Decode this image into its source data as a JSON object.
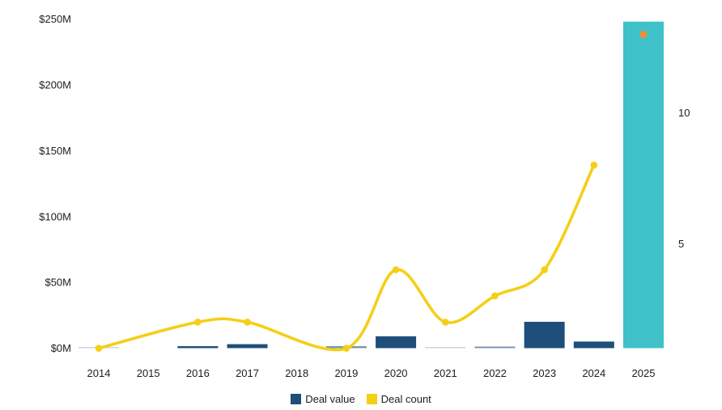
{
  "colors": {
    "navy": "#1f4e7a",
    "teal": "#3fc1c9",
    "yellow": "#f5cf17",
    "orange": "#ec8f35",
    "text_primary": "#1c1c1c"
  },
  "legend": {
    "items": [
      {
        "label": "Deal value",
        "color_key": "navy"
      },
      {
        "label": "Deal count",
        "color_key": "yellow"
      }
    ]
  },
  "chart_data": {
    "type": "bar",
    "subtype": "combo bar + line, dual axis",
    "title": "",
    "categories": [
      "2014",
      "2015",
      "2016",
      "2017",
      "2018",
      "2019",
      "2020",
      "2021",
      "2022",
      "2023",
      "2024",
      "2025"
    ],
    "series": [
      {
        "name": "Deal value",
        "type": "bar",
        "axis": "left",
        "unit": "USD millions",
        "values": [
          0.4,
          0,
          1.5,
          3,
          0,
          1.5,
          9,
          0.8,
          1.2,
          20,
          5,
          248
        ],
        "shades": [
          "light",
          null,
          null,
          null,
          null,
          "medium",
          null,
          "light",
          "medium",
          null,
          null,
          "teal"
        ],
        "highlight_category": "2025"
      },
      {
        "name": "Deal count",
        "type": "line",
        "axis": "right",
        "values": [
          1,
          null,
          2,
          2,
          null,
          1,
          4,
          2,
          3,
          4,
          8,
          13
        ],
        "note": "line with round markers ends at 2024; 2025 count shown as detached orange dot on teal bar"
      }
    ],
    "left_axis": {
      "range": [
        0,
        250
      ],
      "ticks": [
        {
          "label": "$0M",
          "value": 0
        },
        {
          "label": "$50M",
          "value": 50
        },
        {
          "label": "$100M",
          "value": 100
        },
        {
          "label": "$150M",
          "value": 150
        },
        {
          "label": "$200M",
          "value": 200
        },
        {
          "label": "$250M",
          "value": 250
        }
      ]
    },
    "right_axis": {
      "ticks": [
        {
          "label": "5",
          "value": 5
        },
        {
          "label": "10",
          "value": 10
        }
      ]
    },
    "grid": "none",
    "legend_position": "bottom-center"
  }
}
